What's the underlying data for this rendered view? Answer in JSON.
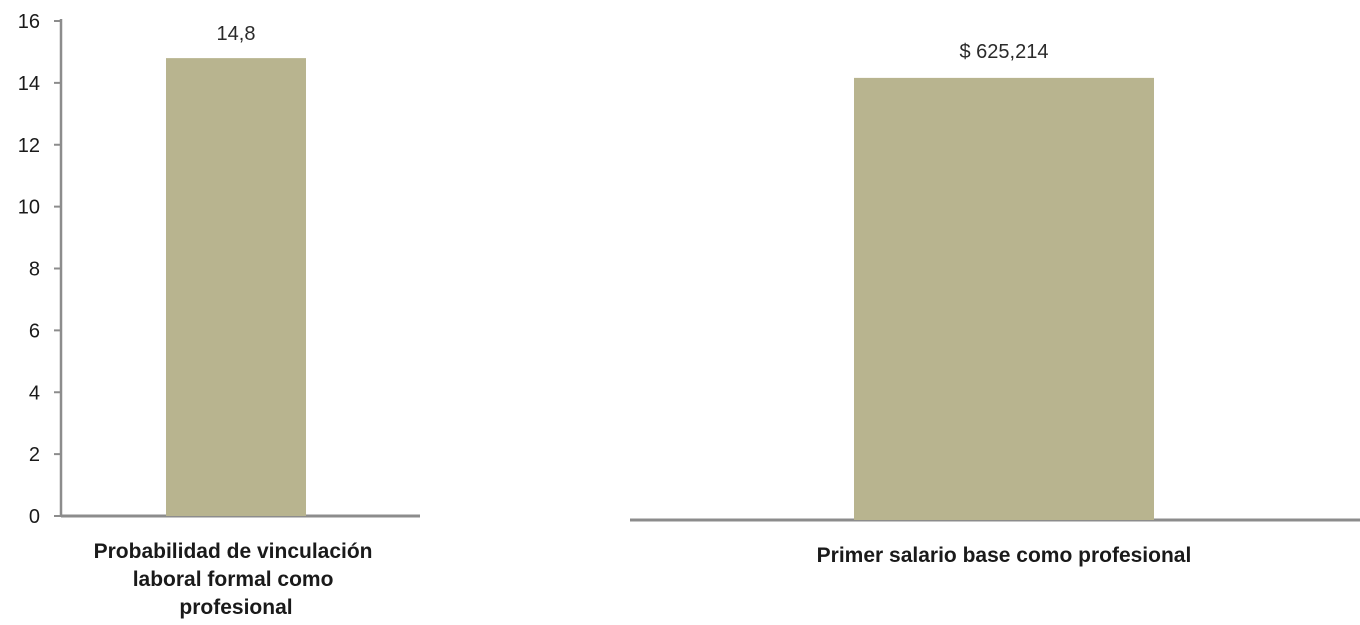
{
  "colors": {
    "bar": "#b8b48f",
    "axis": "#8c8c8c"
  },
  "chart_data": [
    {
      "type": "bar",
      "categories": [
        "Probabilidad de vinculación laboral formal como profesional"
      ],
      "category_lines": [
        "Probabilidad de vinculación",
        "laboral formal como",
        "profesional"
      ],
      "values": [
        14.8
      ],
      "data_labels": [
        "14,8"
      ],
      "ylim": [
        0,
        16
      ],
      "yticks": [
        "0",
        "2",
        "4",
        "6",
        "8",
        "10",
        "12",
        "14",
        "16"
      ],
      "grid": false,
      "title": "",
      "xlabel": "",
      "ylabel": ""
    },
    {
      "type": "bar",
      "categories": [
        "Primer salario base como profesional"
      ],
      "category_lines": [
        "Primer salario base como profesional"
      ],
      "values": [
        625214
      ],
      "data_labels": [
        "$ 625,214"
      ],
      "grid": false,
      "title": "",
      "xlabel": "",
      "ylabel": ""
    }
  ]
}
